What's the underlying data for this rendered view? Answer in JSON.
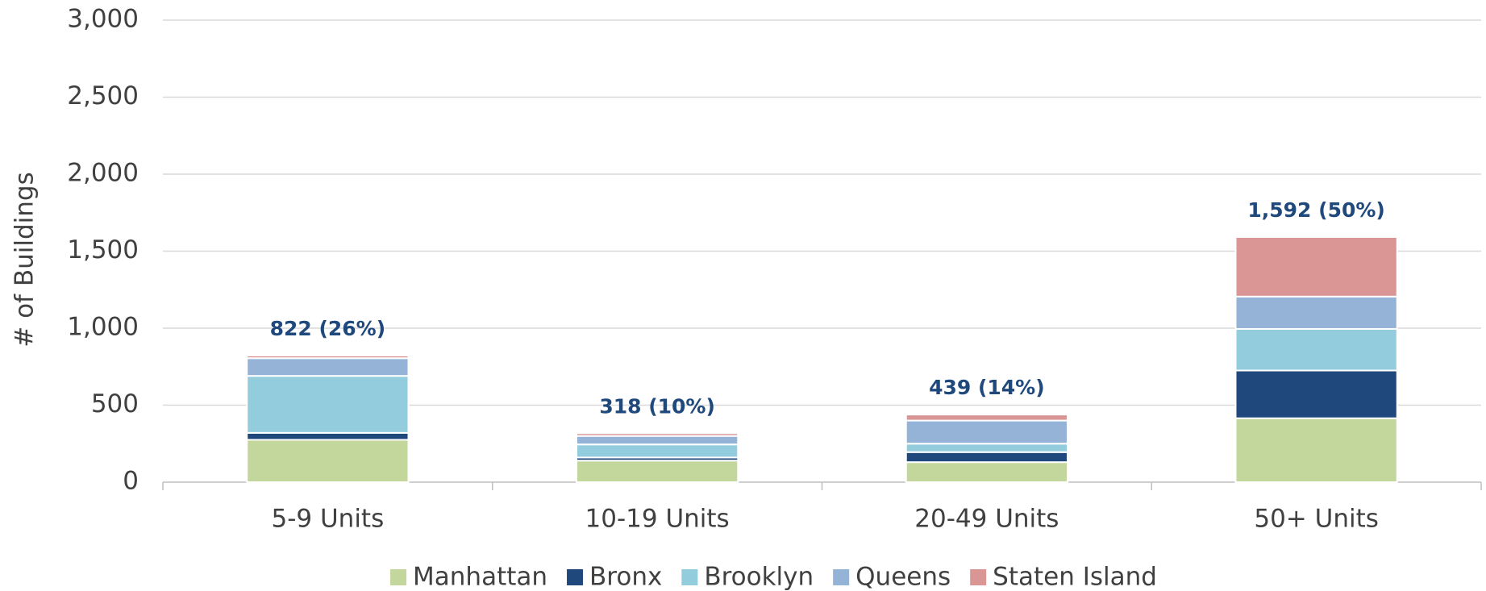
{
  "chart_data": {
    "type": "stacked_bar",
    "y_label": "# of Buildings",
    "categories": [
      "5-9 Units",
      "10-19 Units",
      "20-49 Units",
      "50+ Units"
    ],
    "series": [
      {
        "name": "Manhattan",
        "color": "#c3d69b",
        "values": [
          275,
          140,
          130,
          415
        ]
      },
      {
        "name": "Bronx",
        "color": "#1f497d",
        "values": [
          45,
          20,
          65,
          310
        ]
      },
      {
        "name": "Brooklyn",
        "color": "#93cddd",
        "values": [
          370,
          85,
          55,
          270
        ]
      },
      {
        "name": "Queens",
        "color": "#95b3d7",
        "values": [
          115,
          55,
          150,
          210
        ]
      },
      {
        "name": "Staten Island",
        "color": "#d99694",
        "values": [
          17,
          18,
          39,
          387
        ]
      }
    ],
    "data_labels": [
      "822 (26%)",
      "318 (10%)",
      "439 (14%)",
      "1,592 (50%)"
    ],
    "ylim": [
      0,
      3000
    ],
    "yticks": [
      0,
      500,
      {
        "value": 1000,
        "label": "1,000"
      },
      {
        "value": 1500,
        "label": "1,500"
      },
      {
        "value": 2000,
        "label": "2,000"
      },
      {
        "value": 2500,
        "label": "2,500"
      },
      {
        "value": 3000,
        "label": "3,000"
      }
    ],
    "grid": true,
    "legend": "bottom"
  }
}
